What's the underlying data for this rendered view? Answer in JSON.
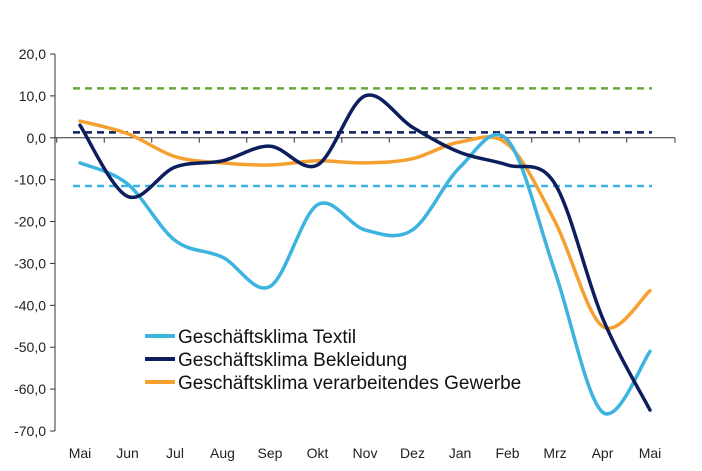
{
  "chart_data": {
    "type": "line",
    "title": "",
    "xlabel": "",
    "ylabel": "",
    "categories": [
      "Mai",
      "Jun",
      "Jul",
      "Aug",
      "Sep",
      "Okt",
      "Nov",
      "Dez",
      "Jan",
      "Feb",
      "Mrz",
      "Apr",
      "Mai"
    ],
    "yticks": [
      "20,0",
      "10,0",
      "0,0",
      "-10,0",
      "-20,0",
      "-30,0",
      "-40,0",
      "-50,0",
      "-60,0",
      "-70,0"
    ],
    "ylim": [
      -70,
      20
    ],
    "grid": false,
    "legend_position": "bottom-left",
    "series": [
      {
        "name": "Geschäftsklima Textil",
        "color": "#3db3e0",
        "values": [
          -6,
          -11,
          -24.5,
          -28.5,
          -35.5,
          -16,
          -22,
          -22,
          -7,
          -0.5,
          -32,
          -65.5,
          -51
        ]
      },
      {
        "name": "Geschäftsklima Bekleidung",
        "color": "#0d1e5c",
        "values": [
          3,
          -14,
          -7,
          -5.5,
          -2,
          -6.5,
          10,
          2.5,
          -3.5,
          -6.5,
          -11,
          -43,
          -65
        ]
      },
      {
        "name": "Geschäftsklima verarbeitendes Gewerbe",
        "color": "#f5a030",
        "values": [
          4,
          1,
          -4.5,
          -6,
          -6.5,
          -5.5,
          -6,
          -5,
          -1,
          -1.5,
          -20,
          -45,
          -36.5
        ]
      }
    ],
    "reference_lines": [
      {
        "value": 11.8,
        "color": "#6aaa3a",
        "style": "dashed"
      },
      {
        "value": 1.3,
        "color": "#0d1e5c",
        "style": "dashed"
      },
      {
        "value": -11.5,
        "color": "#3db3e0",
        "style": "dashed"
      }
    ]
  }
}
